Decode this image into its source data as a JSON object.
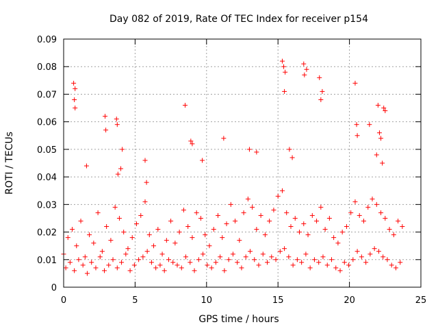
{
  "chart_data": {
    "type": "scatter",
    "title": "Day 082 of 2019, Rate Of TEC Index for receiver p154",
    "xlabel": "GPS time / hours",
    "ylabel": "ROTI / TECUs",
    "xlim": [
      0,
      25
    ],
    "ylim": [
      0,
      0.09
    ],
    "xticks": [
      0,
      5,
      10,
      15,
      20,
      25
    ],
    "xtick_labels": [
      "0",
      "5",
      "10",
      "15",
      "20",
      "25"
    ],
    "yticks": [
      0,
      0.01,
      0.02,
      0.03,
      0.04,
      0.05,
      0.06,
      0.07,
      0.08,
      0.09
    ],
    "ytick_labels": [
      "0",
      "0.01",
      "0.02",
      "0.03",
      "0.04",
      "0.05",
      "0.06",
      "0.07",
      "0.08",
      "0.09"
    ],
    "grid": true,
    "marker": "+",
    "color": "#ff0000",
    "series": [
      {
        "name": "ROTI",
        "x": [
          0.0,
          0.3,
          0.6,
          0.9,
          1.2,
          1.5,
          1.8,
          2.1,
          2.4,
          2.7,
          3.0,
          3.3,
          3.6,
          3.9,
          4.2,
          4.5,
          4.8,
          5.1,
          5.4,
          5.7,
          6.0,
          6.3,
          6.6,
          6.9,
          7.2,
          7.5,
          7.8,
          8.1,
          8.4,
          8.7,
          9.0,
          9.3,
          9.6,
          9.9,
          10.2,
          10.5,
          10.8,
          11.1,
          11.4,
          11.7,
          12.0,
          12.3,
          12.6,
          12.9,
          13.2,
          13.5,
          13.8,
          14.1,
          14.4,
          14.7,
          15.0,
          15.3,
          15.6,
          15.9,
          16.2,
          16.5,
          16.8,
          17.1,
          17.4,
          17.7,
          18.0,
          18.3,
          18.6,
          18.9,
          19.2,
          19.5,
          19.8,
          20.1,
          20.4,
          20.7,
          21.0,
          21.3,
          21.6,
          21.9,
          22.2,
          22.5,
          22.8,
          23.1,
          23.4,
          23.7,
          0.15,
          0.45,
          0.75,
          1.05,
          1.35,
          1.65,
          1.95,
          2.25,
          2.55,
          2.85,
          3.15,
          3.45,
          3.75,
          4.05,
          4.35,
          4.65,
          4.95,
          5.25,
          5.55,
          5.85,
          6.15,
          6.45,
          6.75,
          7.05,
          7.35,
          7.65,
          7.95,
          8.25,
          8.55,
          8.85,
          9.15,
          9.45,
          9.75,
          10.05,
          10.35,
          10.65,
          10.95,
          11.25,
          11.55,
          11.85,
          12.15,
          12.45,
          12.75,
          13.05,
          13.35,
          13.65,
          13.95,
          14.25,
          14.55,
          14.85,
          15.15,
          15.45,
          15.75,
          16.05,
          16.35,
          16.65,
          16.95,
          17.25,
          17.55,
          17.85,
          18.15,
          18.45,
          18.75,
          19.05,
          19.35,
          19.65,
          19.95,
          20.25,
          20.55,
          20.85,
          21.15,
          21.45,
          21.75,
          22.05,
          22.35,
          22.65,
          22.95,
          23.25,
          23.55,
          0.7,
          0.75,
          0.8,
          0.8,
          2.9,
          2.95,
          3.7,
          3.75,
          4.1,
          8.5,
          8.9,
          9.0,
          9.7,
          11.2,
          13.0,
          13.5,
          15.3,
          15.4,
          15.45,
          15.5,
          16.8,
          16.85,
          17.0,
          17.9,
          18.0,
          18.1,
          20.4,
          20.5,
          20.55,
          21.4,
          22.0,
          22.1,
          22.2,
          22.4,
          22.5,
          1.6,
          5.7,
          5.8,
          3.8,
          4.0,
          15.8,
          16.0,
          21.9,
          22.3
        ],
        "y": [
          0.012,
          0.018,
          0.021,
          0.015,
          0.024,
          0.011,
          0.019,
          0.016,
          0.027,
          0.013,
          0.022,
          0.017,
          0.029,
          0.025,
          0.02,
          0.014,
          0.018,
          0.023,
          0.026,
          0.031,
          0.019,
          0.015,
          0.021,
          0.012,
          0.017,
          0.024,
          0.016,
          0.02,
          0.028,
          0.022,
          0.018,
          0.027,
          0.025,
          0.019,
          0.015,
          0.021,
          0.026,
          0.018,
          0.023,
          0.03,
          0.024,
          0.017,
          0.027,
          0.032,
          0.029,
          0.021,
          0.026,
          0.019,
          0.024,
          0.028,
          0.033,
          0.035,
          0.027,
          0.022,
          0.025,
          0.02,
          0.023,
          0.019,
          0.026,
          0.024,
          0.029,
          0.021,
          0.025,
          0.018,
          0.016,
          0.02,
          0.022,
          0.027,
          0.031,
          0.026,
          0.024,
          0.029,
          0.032,
          0.03,
          0.027,
          0.025,
          0.021,
          0.019,
          0.024,
          0.022,
          0.007,
          0.009,
          0.006,
          0.01,
          0.008,
          0.005,
          0.009,
          0.007,
          0.011,
          0.006,
          0.008,
          0.01,
          0.007,
          0.009,
          0.012,
          0.006,
          0.008,
          0.01,
          0.011,
          0.013,
          0.009,
          0.007,
          0.008,
          0.006,
          0.01,
          0.009,
          0.008,
          0.007,
          0.011,
          0.009,
          0.006,
          0.01,
          0.012,
          0.008,
          0.007,
          0.009,
          0.011,
          0.006,
          0.01,
          0.012,
          0.009,
          0.007,
          0.011,
          0.013,
          0.01,
          0.008,
          0.012,
          0.009,
          0.011,
          0.01,
          0.013,
          0.014,
          0.011,
          0.008,
          0.01,
          0.009,
          0.012,
          0.007,
          0.01,
          0.009,
          0.011,
          0.008,
          0.01,
          0.007,
          0.006,
          0.009,
          0.008,
          0.01,
          0.013,
          0.011,
          0.009,
          0.012,
          0.014,
          0.013,
          0.011,
          0.01,
          0.008,
          0.007,
          0.009,
          0.074,
          0.068,
          0.065,
          0.072,
          0.062,
          0.057,
          0.061,
          0.059,
          0.05,
          0.066,
          0.053,
          0.052,
          0.046,
          0.054,
          0.05,
          0.049,
          0.082,
          0.08,
          0.071,
          0.078,
          0.081,
          0.077,
          0.079,
          0.076,
          0.068,
          0.071,
          0.074,
          0.059,
          0.055,
          0.059,
          0.066,
          0.056,
          0.054,
          0.065,
          0.064,
          0.044,
          0.046,
          0.038,
          0.041,
          0.043,
          0.05,
          0.047,
          0.048,
          0.045
        ]
      }
    ]
  }
}
